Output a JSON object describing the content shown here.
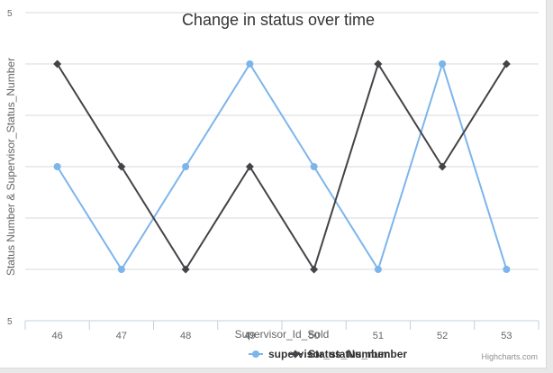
{
  "chart_data": {
    "type": "line",
    "title": "Change in status over time",
    "xlabel": "Supervisor_Id_Sold",
    "ylabel": "Status Number & Supervisor_Status_Number",
    "categories": [
      "46",
      "47",
      "48",
      "49",
      "50",
      "51",
      "52",
      "53"
    ],
    "y_tick_labels": [
      "5",
      "",
      "",
      "",
      "",
      "",
      "5"
    ],
    "ylim": [
      0,
      6
    ],
    "grid": true,
    "legend_position": "bottom-center",
    "series": [
      {
        "name": "supervisor_status_number",
        "color": "#7cb5ec",
        "marker": "circle",
        "values": [
          3,
          1,
          3,
          5,
          3,
          1,
          5,
          1
        ]
      },
      {
        "name": "Status_Number",
        "color": "#434348",
        "marker": "diamond",
        "values": [
          5,
          3,
          1,
          3,
          1,
          5,
          3,
          5
        ]
      }
    ]
  },
  "credits": "Highcharts.com"
}
